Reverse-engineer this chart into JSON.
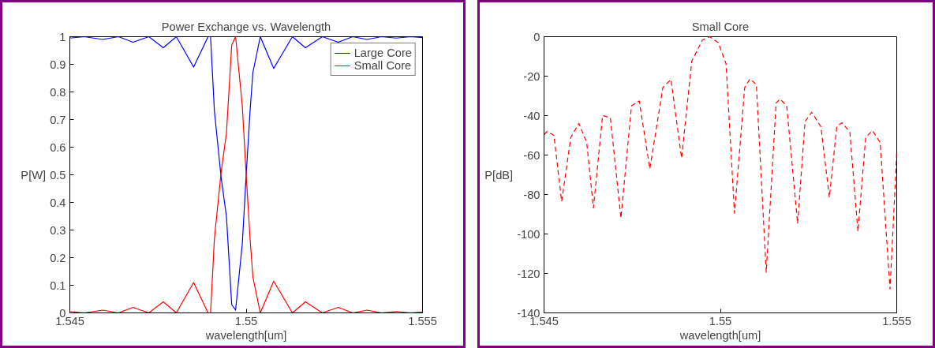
{
  "chart_data": [
    {
      "type": "line",
      "title": "Power Exchange vs. Wavelength",
      "xlabel": "wavelength[um]",
      "ylabel": "P[W]",
      "xlim": [
        1.545,
        1.555
      ],
      "ylim": [
        0,
        1
      ],
      "xticks": [
        1.545,
        1.55,
        1.555
      ],
      "yticks": [
        0,
        0.1,
        0.2,
        0.3,
        0.4,
        0.5,
        0.6,
        0.7,
        0.8,
        0.9,
        1
      ],
      "grid": false,
      "legend": "top right",
      "line_style": "solid",
      "x": [
        1.545,
        1.54541,
        1.54593,
        1.54638,
        1.54679,
        1.54724,
        1.54765,
        1.54802,
        1.54851,
        1.54892,
        1.54899,
        1.5491,
        1.54929,
        1.54944,
        1.54959,
        1.5497,
        1.54989,
        1.55,
        1.55011,
        1.55019,
        1.5504,
        1.55078,
        1.55131,
        1.55168,
        1.55216,
        1.55261,
        1.55302,
        1.55343,
        1.55384,
        1.55425,
        1.55466,
        1.555
      ],
      "series": [
        {
          "name": "Large Core",
          "color": "#0000ff",
          "values": [
            0.995,
            1,
            0.99,
            1,
            0.98,
            1,
            0.96,
            1,
            0.89,
            1,
            1,
            0.73,
            0.49,
            0.35,
            0.03,
            0.01,
            0.25,
            0.5,
            0.73,
            0.87,
            1,
            0.885,
            1,
            0.96,
            1,
            0.98,
            1,
            0.99,
            1,
            0.995,
            1,
            0.997
          ]
        },
        {
          "name": "Small Core",
          "color": "#ff0000",
          "values": [
            0.005,
            0,
            0.01,
            0,
            0.02,
            0,
            0.04,
            0,
            0.11,
            0,
            0,
            0.27,
            0.51,
            0.65,
            0.97,
            1,
            0.75,
            0.5,
            0.27,
            0.13,
            0,
            0.115,
            0,
            0.04,
            0,
            0.02,
            0,
            0.01,
            0,
            0.005,
            0,
            0.003
          ]
        }
      ]
    },
    {
      "type": "line",
      "title": "Small Core",
      "xlabel": "wavelength[um]",
      "ylabel": "P[dB]",
      "xlim": [
        1.545,
        1.555
      ],
      "ylim": [
        -140,
        0
      ],
      "xticks": [
        1.545,
        1.55,
        1.555
      ],
      "yticks": [
        -140,
        -120,
        -100,
        -80,
        -60,
        -40,
        -20,
        0
      ],
      "grid": false,
      "legend": false,
      "line_style": "dashed",
      "x": [
        1.545,
        1.54509,
        1.54528,
        1.5455,
        1.54576,
        1.54599,
        1.54621,
        1.5464,
        1.54666,
        1.54688,
        1.54718,
        1.54748,
        1.5477,
        1.548,
        1.54837,
        1.5486,
        1.5489,
        1.54919,
        1.54949,
        1.5497,
        1.54994,
        1.55016,
        1.5504,
        1.55069,
        1.55084,
        1.55102,
        1.5513,
        1.55158,
        1.55169,
        1.55188,
        1.55219,
        1.5524,
        1.55259,
        1.55285,
        1.55309,
        1.5533,
        1.55345,
        1.55367,
        1.5539,
        1.55412,
        1.55431,
        1.55453,
        1.55481,
        1.555
      ],
      "series": [
        {
          "color": "#ff0000",
          "values": [
            -49.6,
            -48,
            -50,
            -83.5,
            -51,
            -44,
            -53.6,
            -86.8,
            -40,
            -41,
            -92,
            -35,
            -32.6,
            -67,
            -25.7,
            -21.7,
            -61.6,
            -12.4,
            -1.7,
            0,
            -3,
            -13.7,
            -89.5,
            -25.7,
            -21.4,
            -24.3,
            -119.4,
            -33.6,
            -31.6,
            -35,
            -94.8,
            -43,
            -38.3,
            -45.6,
            -81.5,
            -45.6,
            -43.6,
            -48.3,
            -98.8,
            -51,
            -47.6,
            -53.6,
            -128,
            -59
          ]
        }
      ]
    }
  ]
}
